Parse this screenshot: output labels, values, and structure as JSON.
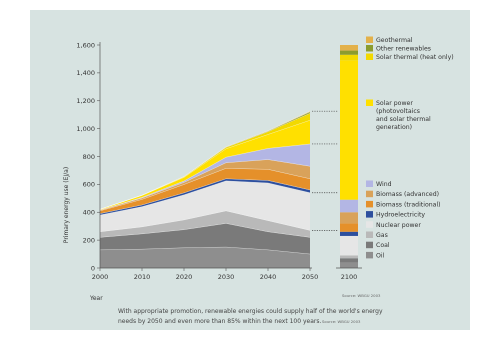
{
  "chart_data": {
    "type": "area",
    "x": [
      2000,
      2010,
      2020,
      2030,
      2040,
      2050
    ],
    "ylabel": "Primary energy use (EJ/a)",
    "xlabel": "Year",
    "ylim": [
      0,
      1600
    ],
    "yticks": [
      "0",
      "200",
      "400",
      "600",
      "800",
      "1,000",
      "1,200",
      "1,400",
      "1,600"
    ],
    "xticks": [
      "2000",
      "2010",
      "2020",
      "2030",
      "2040",
      "2050"
    ],
    "extra_x_label": "2100",
    "series": [
      {
        "name": "Oil",
        "color": "#8e8e8e",
        "values": [
          130,
          135,
          145,
          150,
          130,
          100
        ],
        "v2100": 40
      },
      {
        "name": "Coal",
        "color": "#7a7a7a",
        "values": [
          90,
          110,
          130,
          170,
          130,
          120
        ],
        "v2100": 30
      },
      {
        "name": "Gas",
        "color": "#b9b9b9",
        "values": [
          40,
          50,
          70,
          90,
          80,
          50
        ],
        "v2100": 20
      },
      {
        "name": "Nuclear power",
        "color": "#e6e6e6",
        "values": [
          120,
          145,
          180,
          215,
          270,
          270
        ],
        "v2100": 140
      },
      {
        "name": "Hydroelectricity",
        "color": "#2d4f9e",
        "values": [
          10,
          12,
          14,
          15,
          18,
          20
        ],
        "v2100": 30
      },
      {
        "name": "Biomass (traditional)",
        "color": "#e5902a",
        "values": [
          20,
          40,
          60,
          75,
          80,
          80
        ],
        "v2100": 60
      },
      {
        "name": "Biomass (advanced)",
        "color": "#d9a25a",
        "values": [
          5,
          10,
          15,
          40,
          70,
          90
        ],
        "v2100": 80
      },
      {
        "name": "Wind",
        "color": "#b3b6e4",
        "values": [
          1,
          5,
          10,
          40,
          80,
          160
        ],
        "v2100": 90
      },
      {
        "name": "Solar power (photovoltaics and solar thermal generation)",
        "color": "#ffe000",
        "values": [
          5,
          13,
          26,
          60,
          100,
          170
        ],
        "v2100": 1000
      },
      {
        "name": "Solar thermal (heat only)",
        "color": "#f2d900",
        "values": [
          0,
          2,
          4,
          10,
          20,
          50
        ],
        "v2100": 40
      },
      {
        "name": "Other renewables",
        "color": "#8b9c2e",
        "values": [
          0,
          1,
          2,
          3,
          4,
          10
        ],
        "v2100": 30
      },
      {
        "name": "Geothermal",
        "color": "#e3b14a",
        "values": [
          0,
          0,
          1,
          2,
          3,
          5
        ],
        "v2100": 40
      }
    ],
    "source_main": "Source: WBGU 2003",
    "caption": "With appropriate promotion, renewable energies could supply half of the world's energy needs by 2050 and even more than 85% within the next 100 years.",
    "caption_source": "Source: WBGU 2003",
    "caption_line1": "With appropriate promotion, renewable energies could supply half of the world's energy",
    "caption_line2": "needs by 2050 and even more than 85% within the next 100 years."
  },
  "legend_top": [
    {
      "label": "Geothermal",
      "color": "#e3b14a"
    },
    {
      "label": "Other renewables",
      "color": "#8b9c2e"
    },
    {
      "label": "Solar thermal (heat only)",
      "color": "#f2d900"
    }
  ],
  "legend_solar": {
    "color": "#ffe000",
    "lines": [
      "Solar power",
      "(photovoltaics",
      "and solar thermal",
      "generation)"
    ]
  },
  "legend_bottom": [
    {
      "label": "Wind",
      "color": "#b3b6e4"
    },
    {
      "label": "Biomass (advanced)",
      "color": "#d9a25a"
    },
    {
      "label": "Biomass (traditional)",
      "color": "#e5902a"
    },
    {
      "label": "Hydroelectricity",
      "color": "#2d4f9e"
    },
    {
      "label": "Nuclear power",
      "color": "#e6e6e6"
    },
    {
      "label": "Gas",
      "color": "#b9b9b9"
    },
    {
      "label": "Coal",
      "color": "#7a7a7a"
    },
    {
      "label": "Oil",
      "color": "#8e8e8e"
    }
  ]
}
